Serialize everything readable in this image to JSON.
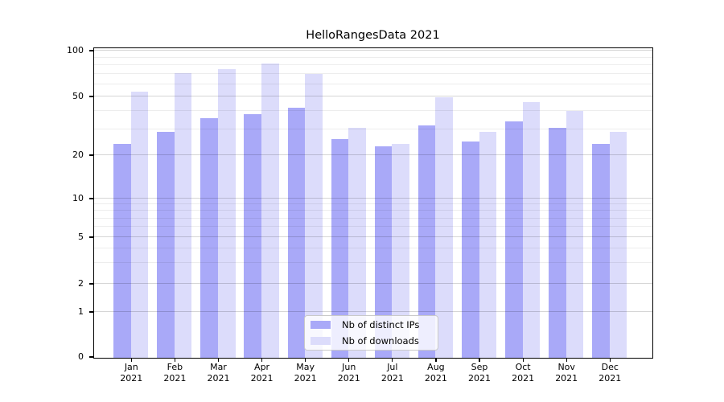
{
  "chart_data": {
    "type": "bar",
    "title": "HelloRangesData 2021",
    "categories": [
      {
        "month": "Jan",
        "year": "2021"
      },
      {
        "month": "Feb",
        "year": "2021"
      },
      {
        "month": "Mar",
        "year": "2021"
      },
      {
        "month": "Apr",
        "year": "2021"
      },
      {
        "month": "May",
        "year": "2021"
      },
      {
        "month": "Jun",
        "year": "2021"
      },
      {
        "month": "Jul",
        "year": "2021"
      },
      {
        "month": "Aug",
        "year": "2021"
      },
      {
        "month": "Sep",
        "year": "2021"
      },
      {
        "month": "Oct",
        "year": "2021"
      },
      {
        "month": "Nov",
        "year": "2021"
      },
      {
        "month": "Dec",
        "year": "2021"
      }
    ],
    "series": [
      {
        "name": "Nb of distinct IPs",
        "color": "#a9a9f8",
        "values": [
          24,
          29,
          36,
          38,
          42,
          26,
          23,
          32,
          25,
          34,
          31,
          24
        ]
      },
      {
        "name": "Nb of downloads",
        "color": "#dcdcfb",
        "values": [
          54,
          72,
          76,
          83,
          71,
          31,
          24,
          50,
          29,
          46,
          40,
          29
        ]
      }
    ],
    "xlabel": "",
    "ylabel": "",
    "yscale": "symlog",
    "ylim": [
      0,
      104
    ],
    "y_ticks": [
      0,
      1,
      2,
      5,
      10,
      20,
      50,
      100
    ],
    "y_minor_gridlines": [
      3,
      4,
      6,
      7,
      8,
      9,
      30,
      40,
      60,
      70,
      80,
      90
    ],
    "grid": "on",
    "legend_position": "lower center"
  }
}
